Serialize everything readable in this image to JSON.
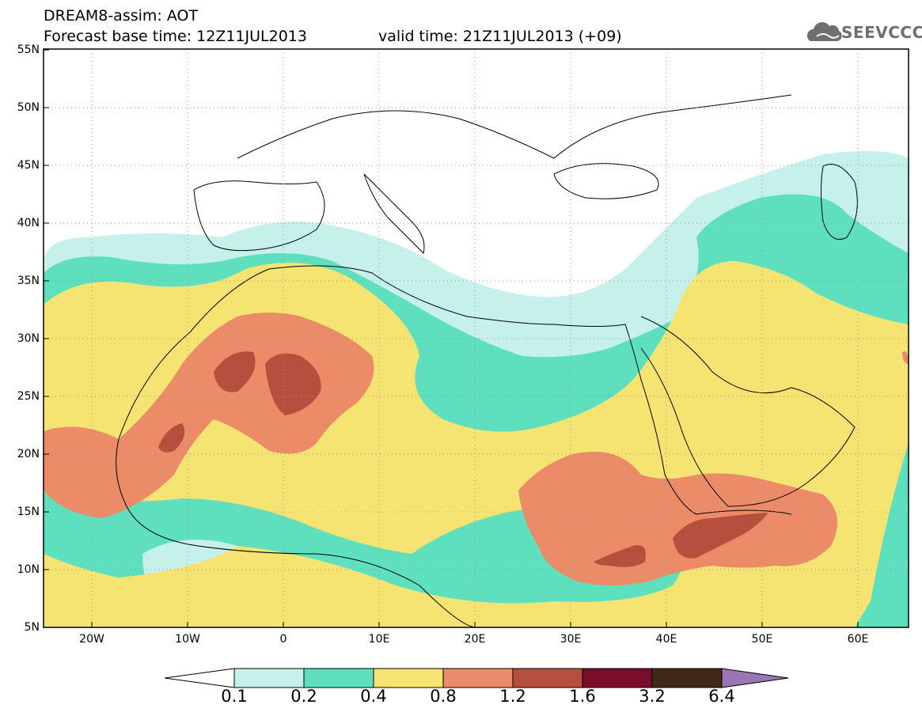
{
  "header": {
    "line1": "DREAM8-assim: AOT",
    "line2_left": "Forecast base time: 12Z11JUL2013",
    "line2_right": "valid time: 21Z11JUL2013 (+09)",
    "logo_text": "SEEVCCC",
    "logo_icon": "cloud-icon"
  },
  "map": {
    "lat_labels": [
      "55N",
      "50N",
      "45N",
      "40N",
      "35N",
      "30N",
      "25N",
      "20N",
      "15N",
      "10N",
      "5N"
    ],
    "lon_labels": [
      "20W",
      "10W",
      "0",
      "10E",
      "20E",
      "30E",
      "40E",
      "50E",
      "60E"
    ],
    "lat_range": [
      5,
      55
    ],
    "lon_range": [
      -25,
      65
    ]
  },
  "legend": {
    "labels": [
      "0.1",
      "0.2",
      "0.4",
      "0.8",
      "1.2",
      "1.6",
      "3.2",
      "6.4"
    ],
    "colors": [
      "#c6f0ea",
      "#5ee0be",
      "#f5e472",
      "#eb8b68",
      "#b5503e",
      "#7a0d2a",
      "#3f2a18",
      "#9a76b5"
    ],
    "under_color": "#ffffff"
  }
}
